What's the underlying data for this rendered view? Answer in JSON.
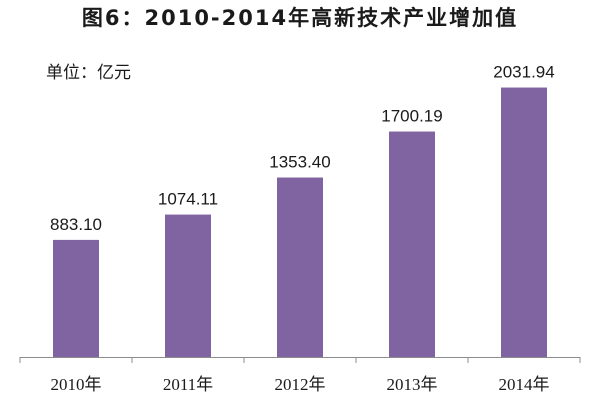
{
  "chart_data": {
    "type": "bar",
    "title": "图6：2010-2014年高新技术产业增加值",
    "unit_label": "单位：亿元",
    "categories": [
      "2010年",
      "2011年",
      "2012年",
      "2013年",
      "2014年"
    ],
    "values": [
      883.1,
      1074.11,
      1353.4,
      1700.19,
      2031.94
    ],
    "value_labels": [
      "883.10",
      "1074.11",
      "1353.40",
      "1700.19",
      "2031.94"
    ],
    "xlabel": "",
    "ylabel": "",
    "ylim": [
      0,
      2300
    ],
    "grid": false,
    "legend": "none",
    "bar_color": "#8064A2",
    "axis_color": "#8c8c8c"
  }
}
